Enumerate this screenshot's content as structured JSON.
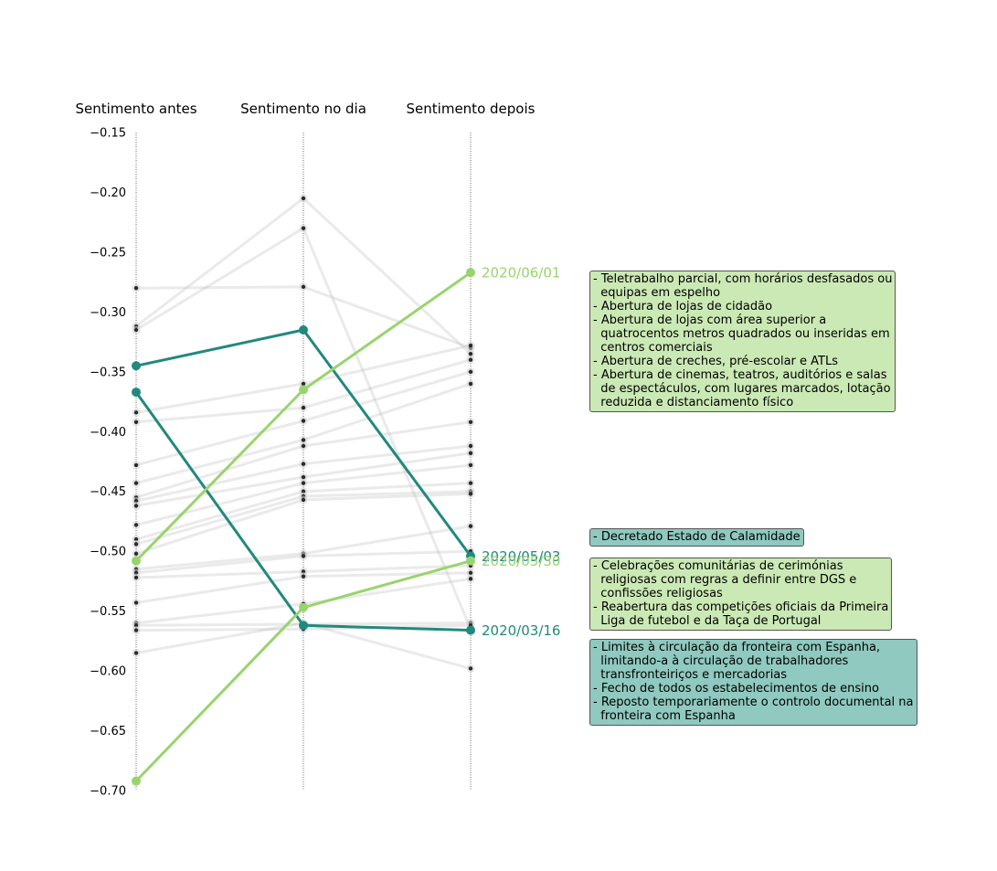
{
  "chart_data": {
    "type": "slope",
    "columns": [
      "Sentimento antes",
      "Sentimento no dia",
      "Sentimento depois"
    ],
    "ylim": [
      -0.7,
      -0.15
    ],
    "yticks": [
      -0.15,
      -0.2,
      -0.25,
      -0.3,
      -0.35,
      -0.4,
      -0.45,
      -0.5,
      -0.55,
      -0.6,
      -0.65,
      -0.7
    ],
    "ytick_labels": [
      "−0.15",
      "−0.20",
      "−0.25",
      "−0.30",
      "−0.35",
      "−0.40",
      "−0.45",
      "−0.50",
      "−0.55",
      "−0.60",
      "−0.65",
      "−0.70"
    ],
    "background_series": [
      [
        -0.28,
        -0.279,
        -0.33
      ],
      [
        -0.312,
        -0.205,
        -0.335
      ],
      [
        -0.315,
        -0.23,
        -0.565
      ],
      [
        -0.384,
        -0.36,
        -0.328
      ],
      [
        -0.392,
        -0.38,
        -0.34
      ],
      [
        -0.428,
        -0.391,
        -0.35
      ],
      [
        -0.443,
        -0.407,
        -0.36
      ],
      [
        -0.455,
        -0.412,
        -0.392
      ],
      [
        -0.458,
        -0.427,
        -0.412
      ],
      [
        -0.462,
        -0.438,
        -0.418
      ],
      [
        -0.478,
        -0.443,
        -0.428
      ],
      [
        -0.49,
        -0.45,
        -0.443
      ],
      [
        -0.494,
        -0.454,
        -0.45
      ],
      [
        -0.502,
        -0.457,
        -0.452
      ],
      [
        -0.515,
        -0.502,
        -0.479
      ],
      [
        -0.518,
        -0.504,
        -0.5
      ],
      [
        -0.522,
        -0.517,
        -0.512
      ],
      [
        -0.543,
        -0.521,
        -0.518
      ],
      [
        -0.56,
        -0.544,
        -0.523
      ],
      [
        -0.562,
        -0.561,
        -0.56
      ],
      [
        -0.566,
        -0.565,
        -0.562
      ],
      [
        -0.585,
        -0.56,
        -0.598
      ]
    ],
    "highlight_series": [
      {
        "values": [
          -0.345,
          -0.315,
          -0.504
        ],
        "color": "#21897e",
        "label": "2020/05/03"
      },
      {
        "values": [
          -0.367,
          -0.562,
          -0.566
        ],
        "color": "#21897e",
        "label": "2020/03/16"
      },
      {
        "values": [
          -0.508,
          -0.365,
          -0.267
        ],
        "color": "#98d46e",
        "label": "2020/06/01"
      },
      {
        "values": [
          -0.692,
          -0.547,
          -0.508
        ],
        "color": "#98d46e",
        "label": "2020/05/30"
      }
    ],
    "annotations": [
      {
        "color": "#cbe9b5",
        "lines": [
          "- Teletrabalho parcial, com horários desfasados ou",
          "  equipas em espelho",
          "- Abertura de lojas de cidadão",
          "- Abertura de lojas com área superior a",
          "  quatrocentos metros quadrados ou inseridas em",
          "  centros comerciais",
          "- Abertura de creches, pré-escolar e ATLs",
          "- Abertura de cinemas, teatros, auditórios e salas",
          "  de espectáculos, com lugares marcados, lotação",
          "  reduzida e distanciamento físico"
        ]
      },
      {
        "color": "#8fc9bf",
        "lines": [
          "- Decretado Estado de Calamidade"
        ]
      },
      {
        "color": "#cbe9b5",
        "lines": [
          "- Celebrações comunitárias de cerimónias",
          "  religiosas com regras a definir entre DGS e",
          "  confissões religiosas",
          "- Reabertura das competições oficiais da Primeira",
          "  Liga de futebol e da Taça de Portugal"
        ]
      },
      {
        "color": "#8fc9bf",
        "lines": [
          "- Limites à circulação da fronteira com Espanha,",
          "  limitando-a à circulação de trabalhadores",
          "  transfronteiriços e mercadorias",
          "- Fecho de todos os estabelecimentos de ensino",
          "- Reposto temporariamente o controlo documental na",
          "  fronteira com Espanha"
        ]
      }
    ]
  }
}
